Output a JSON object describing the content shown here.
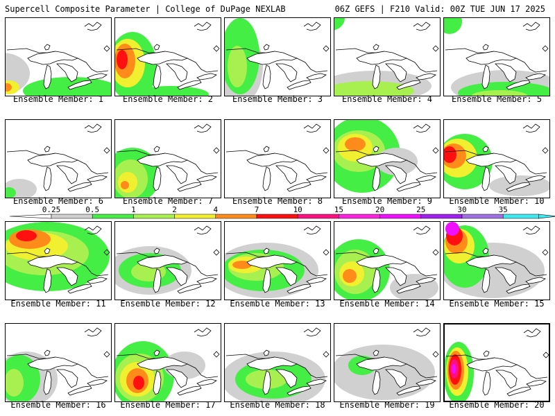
{
  "header": {
    "left": "Supercell Composite Parameter | College of DuPage NEXLAB",
    "right": "06Z GEFS | F210 Valid: 00Z TUE JUN 17 2025"
  },
  "colorbar": {
    "labels": [
      "0.25",
      "0.5",
      "1",
      "2",
      "4",
      "7",
      "10",
      "15",
      "20",
      "25",
      "30",
      "35"
    ],
    "colors": [
      "#d0d0d0",
      "#44ee44",
      "#a8f050",
      "#f0f030",
      "#ff8c1a",
      "#ff1010",
      "#ff1080",
      "#ff20e0",
      "#ee10ff",
      "#a020f0",
      "#a070e0",
      "#40e8f0"
    ]
  },
  "members": [
    {
      "label": "Ensemble Member: 1",
      "blobs": [
        {
          "c": "#d0d0d0",
          "x": -5,
          "y": 80,
          "rx": 40,
          "ry": 30
        },
        {
          "c": "#44ee44",
          "x": 95,
          "y": 105,
          "rx": 70,
          "ry": 20
        },
        {
          "c": "#f0f030",
          "x": 5,
          "y": 100,
          "rx": 15,
          "ry": 10
        },
        {
          "c": "#ff8c1a",
          "x": 2,
          "y": 100,
          "rx": 7,
          "ry": 6
        }
      ]
    },
    {
      "label": "Ensemble Member: 2",
      "blobs": [
        {
          "c": "#44ee44",
          "x": 25,
          "y": 70,
          "rx": 35,
          "ry": 50
        },
        {
          "c": "#f0f030",
          "x": 18,
          "y": 65,
          "rx": 25,
          "ry": 35
        },
        {
          "c": "#ff8c1a",
          "x": 14,
          "y": 62,
          "rx": 15,
          "ry": 25
        },
        {
          "c": "#ff1010",
          "x": 10,
          "y": 60,
          "rx": 8,
          "ry": 14
        },
        {
          "c": "#44ee44",
          "x": 80,
          "y": 110,
          "rx": 55,
          "ry": 12
        }
      ]
    },
    {
      "label": "Ensemble Member: 3",
      "blobs": [
        {
          "c": "#d0d0d0",
          "x": 20,
          "y": 70,
          "rx": 35,
          "ry": 55
        },
        {
          "c": "#44ee44",
          "x": 22,
          "y": 55,
          "rx": 28,
          "ry": 55
        },
        {
          "c": "#a8f050",
          "x": 18,
          "y": 70,
          "rx": 14,
          "ry": 30
        }
      ]
    },
    {
      "label": "Ensemble Member: 4",
      "blobs": [
        {
          "c": "#44ee44",
          "x": -5,
          "y": 0,
          "rx": 20,
          "ry": 18
        },
        {
          "c": "#d0d0d0",
          "x": 60,
          "y": 98,
          "rx": 80,
          "ry": 22
        },
        {
          "c": "#a8f050",
          "x": 50,
          "y": 105,
          "rx": 65,
          "ry": 14
        }
      ]
    },
    {
      "label": "Ensemble Member: 5",
      "blobs": [
        {
          "c": "#44ee44",
          "x": 8,
          "y": 5,
          "rx": 18,
          "ry": 18
        },
        {
          "c": "#d0d0d0",
          "x": 90,
          "y": 100,
          "rx": 80,
          "ry": 25
        },
        {
          "c": "#44ee44",
          "x": 90,
          "y": 108,
          "rx": 70,
          "ry": 16
        },
        {
          "c": "#a8f050",
          "x": 80,
          "y": 112,
          "rx": 40,
          "ry": 8
        }
      ]
    },
    {
      "label": "Ensemble Member: 6",
      "blobs": [
        {
          "c": "#d0d0d0",
          "x": 20,
          "y": 100,
          "rx": 25,
          "ry": 15
        },
        {
          "c": "#44ee44",
          "x": 5,
          "y": 105,
          "rx": 10,
          "ry": 8
        }
      ]
    },
    {
      "label": "Ensemble Member: 7",
      "blobs": [
        {
          "c": "#44ee44",
          "x": 25,
          "y": 80,
          "rx": 40,
          "ry": 40
        },
        {
          "c": "#a8f050",
          "x": 22,
          "y": 85,
          "rx": 25,
          "ry": 28
        },
        {
          "c": "#f0f030",
          "x": 18,
          "y": 90,
          "rx": 14,
          "ry": 15
        },
        {
          "c": "#ff8c1a",
          "x": 14,
          "y": 94,
          "rx": 6,
          "ry": 6
        }
      ]
    },
    {
      "label": "Ensemble Member: 8",
      "blobs": []
    },
    {
      "label": "Ensemble Member: 9",
      "blobs": [
        {
          "c": "#44ee44",
          "x": 40,
          "y": 50,
          "rx": 55,
          "ry": 55
        },
        {
          "c": "#a8f050",
          "x": 35,
          "y": 45,
          "rx": 38,
          "ry": 30
        },
        {
          "c": "#f0f030",
          "x": 30,
          "y": 40,
          "rx": 25,
          "ry": 20
        },
        {
          "c": "#ff8c1a",
          "x": 30,
          "y": 35,
          "rx": 15,
          "ry": 10
        },
        {
          "c": "#d0d0d0",
          "x": 90,
          "y": 60,
          "rx": 30,
          "ry": 20
        }
      ]
    },
    {
      "label": "Ensemble Member: 10",
      "blobs": [
        {
          "c": "#44ee44",
          "x": 30,
          "y": 60,
          "rx": 40,
          "ry": 40
        },
        {
          "c": "#f0f030",
          "x": 20,
          "y": 55,
          "rx": 28,
          "ry": 28
        },
        {
          "c": "#ff8c1a",
          "x": 14,
          "y": 52,
          "rx": 18,
          "ry": 18
        },
        {
          "c": "#ff1010",
          "x": 8,
          "y": 50,
          "rx": 10,
          "ry": 12
        },
        {
          "c": "#d0d0d0",
          "x": 110,
          "y": 95,
          "rx": 45,
          "ry": 15
        }
      ]
    },
    {
      "label": "Ensemble Member: 11",
      "blobs": [
        {
          "c": "#44ee44",
          "x": 60,
          "y": 50,
          "rx": 90,
          "ry": 50
        },
        {
          "c": "#a8f050",
          "x": 55,
          "y": 45,
          "rx": 65,
          "ry": 32
        },
        {
          "c": "#f0f030",
          "x": 45,
          "y": 35,
          "rx": 45,
          "ry": 20
        },
        {
          "c": "#ff8c1a",
          "x": 35,
          "y": 25,
          "rx": 30,
          "ry": 14
        },
        {
          "c": "#ff1010",
          "x": 30,
          "y": 20,
          "rx": 15,
          "ry": 8
        }
      ]
    },
    {
      "label": "Ensemble Member: 12",
      "blobs": [
        {
          "c": "#d0d0d0",
          "x": 50,
          "y": 70,
          "rx": 60,
          "ry": 35
        },
        {
          "c": "#44ee44",
          "x": 50,
          "y": 70,
          "rx": 45,
          "ry": 25
        },
        {
          "c": "#a8f050",
          "x": 48,
          "y": 72,
          "rx": 25,
          "ry": 14
        }
      ]
    },
    {
      "label": "Ensemble Member: 13",
      "blobs": [
        {
          "c": "#d0d0d0",
          "x": 60,
          "y": 70,
          "rx": 75,
          "ry": 40
        },
        {
          "c": "#44ee44",
          "x": 55,
          "y": 70,
          "rx": 60,
          "ry": 30
        },
        {
          "c": "#a8f050",
          "x": 45,
          "y": 65,
          "rx": 40,
          "ry": 20
        },
        {
          "c": "#f0f030",
          "x": 30,
          "y": 62,
          "rx": 25,
          "ry": 12
        },
        {
          "c": "#ff8c1a",
          "x": 25,
          "y": 62,
          "rx": 14,
          "ry": 6
        }
      ]
    },
    {
      "label": "Ensemble Member: 14",
      "blobs": [
        {
          "c": "#44ee44",
          "x": 35,
          "y": 70,
          "rx": 45,
          "ry": 45
        },
        {
          "c": "#a8f050",
          "x": 30,
          "y": 72,
          "rx": 30,
          "ry": 32
        },
        {
          "c": "#f0f030",
          "x": 25,
          "y": 75,
          "rx": 18,
          "ry": 18
        },
        {
          "c": "#ff8c1a",
          "x": 22,
          "y": 78,
          "rx": 10,
          "ry": 10
        },
        {
          "c": "#d0d0d0",
          "x": 115,
          "y": 95,
          "rx": 35,
          "ry": 20
        }
      ]
    },
    {
      "label": "Ensemble Member: 15",
      "blobs": [
        {
          "c": "#d0d0d0",
          "x": 70,
          "y": 70,
          "rx": 75,
          "ry": 40
        },
        {
          "c": "#44ee44",
          "x": 30,
          "y": 50,
          "rx": 35,
          "ry": 45
        },
        {
          "c": "#f0f030",
          "x": 22,
          "y": 35,
          "rx": 22,
          "ry": 25
        },
        {
          "c": "#ff8c1a",
          "x": 18,
          "y": 28,
          "rx": 16,
          "ry": 18
        },
        {
          "c": "#ff1010",
          "x": 15,
          "y": 20,
          "rx": 12,
          "ry": 14
        },
        {
          "c": "#ee10ff",
          "x": 12,
          "y": 10,
          "rx": 10,
          "ry": 10
        }
      ]
    },
    {
      "label": "Ensemble Member: 16",
      "blobs": [
        {
          "c": "#d0d0d0",
          "x": 30,
          "y": 80,
          "rx": 45,
          "ry": 40
        },
        {
          "c": "#44ee44",
          "x": 20,
          "y": 80,
          "rx": 30,
          "ry": 35
        },
        {
          "c": "#a8f050",
          "x": 12,
          "y": 85,
          "rx": 14,
          "ry": 20
        }
      ]
    },
    {
      "label": "Ensemble Member: 17",
      "blobs": [
        {
          "c": "#44ee44",
          "x": 40,
          "y": 75,
          "rx": 45,
          "ry": 50
        },
        {
          "c": "#a8f050",
          "x": 35,
          "y": 78,
          "rx": 35,
          "ry": 35
        },
        {
          "c": "#f0f030",
          "x": 32,
          "y": 80,
          "rx": 25,
          "ry": 25
        },
        {
          "c": "#ff8c1a",
          "x": 32,
          "y": 82,
          "rx": 16,
          "ry": 18
        },
        {
          "c": "#ff1010",
          "x": 34,
          "y": 85,
          "rx": 8,
          "ry": 10
        },
        {
          "c": "#d0d0d0",
          "x": 100,
          "y": 60,
          "rx": 30,
          "ry": 20
        }
      ]
    },
    {
      "label": "Ensemble Member: 18",
      "blobs": [
        {
          "c": "#d0d0d0",
          "x": 70,
          "y": 80,
          "rx": 75,
          "ry": 40
        },
        {
          "c": "#44ee44",
          "x": 70,
          "y": 80,
          "rx": 55,
          "ry": 28
        },
        {
          "c": "#a8f050",
          "x": 60,
          "y": 80,
          "rx": 30,
          "ry": 14
        }
      ]
    },
    {
      "label": "Ensemble Member: 19",
      "blobs": [
        {
          "c": "#d0d0d0",
          "x": 70,
          "y": 70,
          "rx": 75,
          "ry": 40
        },
        {
          "c": "#44ee44",
          "x": 40,
          "y": 60,
          "rx": 20,
          "ry": 14
        }
      ]
    },
    {
      "label": "Ensemble Member: 20",
      "blobs": [
        {
          "c": "#44ee44",
          "x": 20,
          "y": 70,
          "rx": 22,
          "ry": 45
        },
        {
          "c": "#f0f030",
          "x": 18,
          "y": 68,
          "rx": 16,
          "ry": 35
        },
        {
          "c": "#ff8c1a",
          "x": 16,
          "y": 66,
          "rx": 12,
          "ry": 28
        },
        {
          "c": "#ff1010",
          "x": 15,
          "y": 65,
          "rx": 9,
          "ry": 22
        },
        {
          "c": "#ff1080",
          "x": 14,
          "y": 64,
          "rx": 6,
          "ry": 14
        },
        {
          "c": "#ee10ff",
          "x": 13,
          "y": 64,
          "rx": 3,
          "ry": 7
        }
      ]
    }
  ]
}
